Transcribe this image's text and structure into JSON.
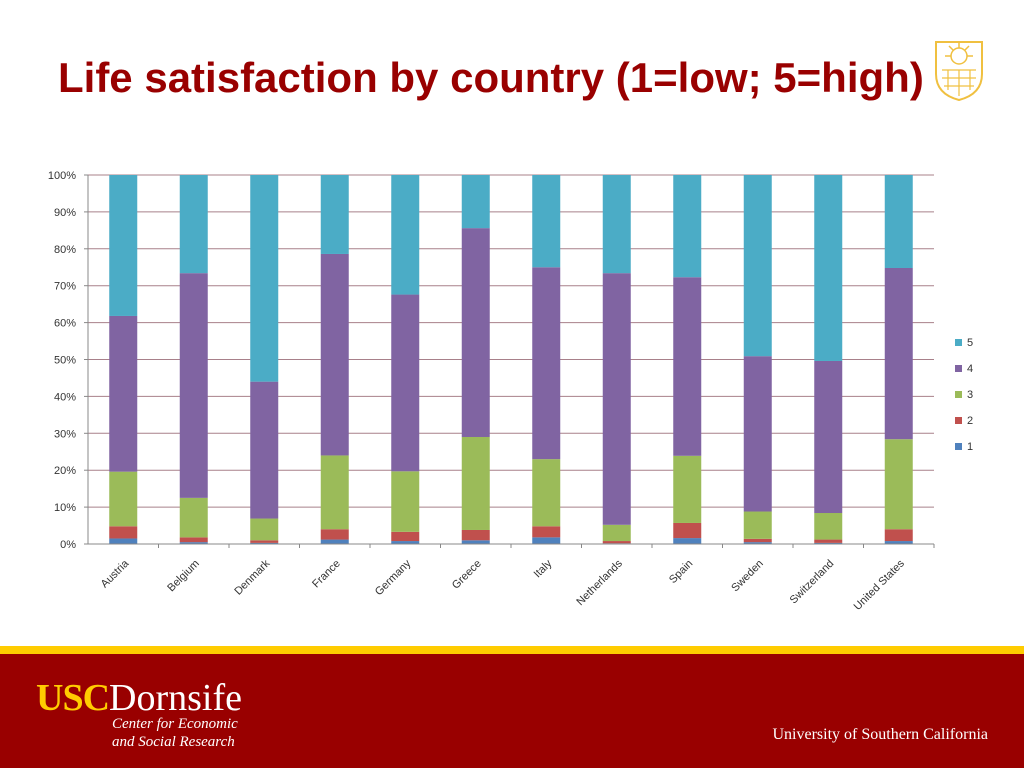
{
  "slide": {
    "title": "Life satisfaction by country (1=low; 5=high)"
  },
  "footer": {
    "brand_usc": "USC",
    "brand_dornsife": "Dornsife",
    "center_line1": "Center for Economic",
    "center_line2": "and Social Research",
    "university": "University of Southern California"
  },
  "colors": {
    "s1": "#4f81bd",
    "s2": "#c0504d",
    "s3": "#9bbb59",
    "s4": "#8064a2",
    "s5": "#4bacc6",
    "gridline": "#a8808a",
    "title": "#990000"
  },
  "chart_data": {
    "type": "bar",
    "stacked": "percent",
    "title": "",
    "xlabel": "",
    "ylabel": "",
    "ylim": [
      0,
      100
    ],
    "yticks": [
      "0%",
      "10%",
      "20%",
      "30%",
      "40%",
      "50%",
      "60%",
      "70%",
      "80%",
      "90%",
      "100%"
    ],
    "categories": [
      "Austria",
      "Belgium",
      "Denmark",
      "France",
      "Germany",
      "Greece",
      "Italy",
      "Netherlands",
      "Spain",
      "Sweden",
      "Switzerland",
      "United States"
    ],
    "legend_position": "right",
    "series": [
      {
        "name": "1",
        "values": [
          1.5,
          0.5,
          0.3,
          1.2,
          0.8,
          1.0,
          1.8,
          0.2,
          1.6,
          0.5,
          0.3,
          0.8
        ]
      },
      {
        "name": "2",
        "values": [
          3.3,
          1.3,
          0.7,
          2.8,
          2.5,
          2.8,
          3.0,
          0.6,
          4.1,
          0.9,
          0.9,
          3.2
        ]
      },
      {
        "name": "3",
        "values": [
          14.8,
          10.7,
          5.9,
          20.0,
          16.4,
          25.2,
          18.2,
          4.4,
          18.2,
          7.4,
          7.2,
          24.4
        ]
      },
      {
        "name": "4",
        "values": [
          42.2,
          60.9,
          37.1,
          54.6,
          47.9,
          56.6,
          52.0,
          68.2,
          48.4,
          42.1,
          41.2,
          46.4
        ]
      },
      {
        "name": "5",
        "values": [
          38.2,
          26.6,
          56.0,
          21.4,
          32.4,
          14.4,
          25.0,
          26.6,
          27.7,
          49.1,
          50.4,
          25.2
        ]
      }
    ]
  }
}
